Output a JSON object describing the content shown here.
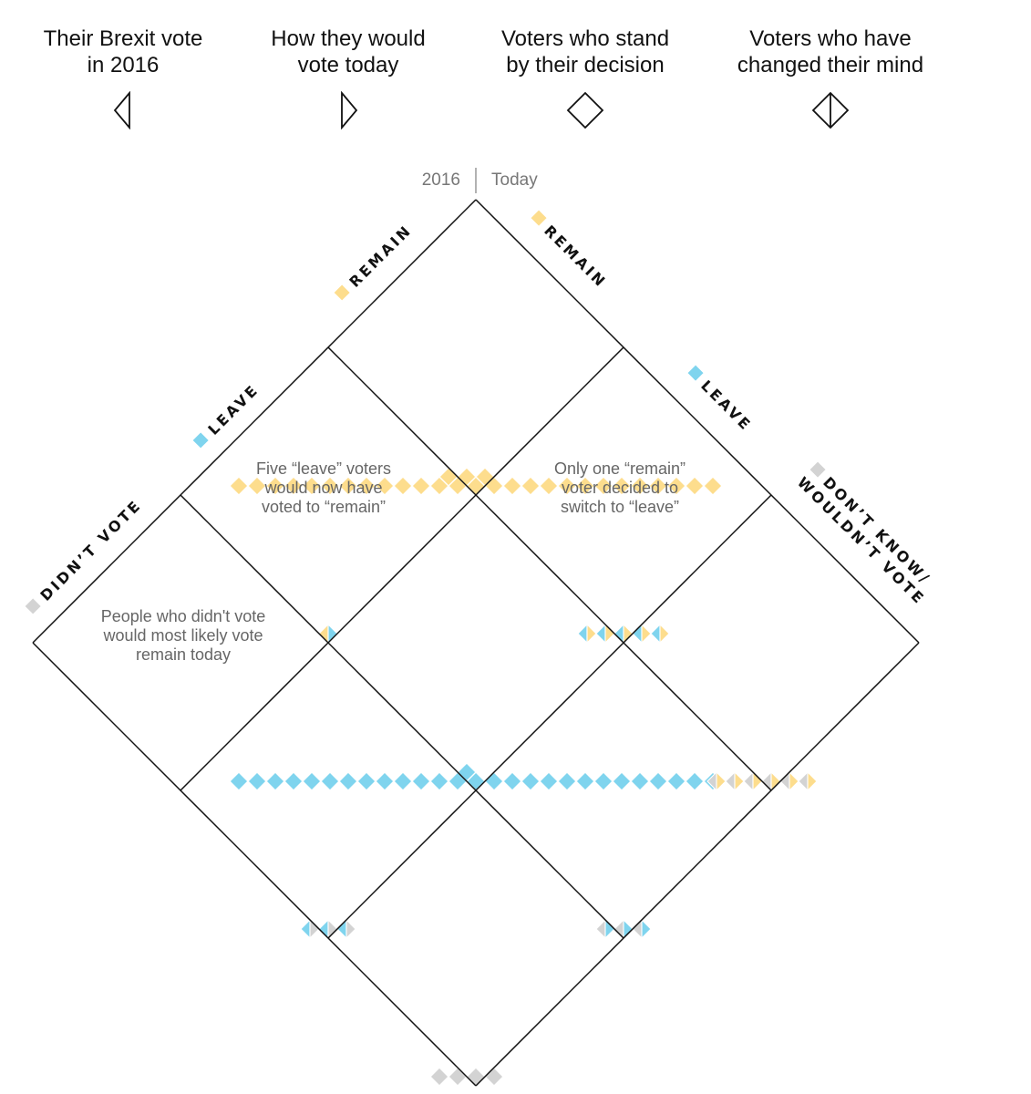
{
  "legend": [
    {
      "text": "Their Brexit vote\nin 2016",
      "icon": "left-triangle-icon"
    },
    {
      "text": "How they would\nvote today",
      "icon": "right-triangle-icon"
    },
    {
      "text": "Voters who stand\nby their decision",
      "icon": "diamond-icon"
    },
    {
      "text": "Voters who have\nchanged their mind",
      "icon": "split-diamond-icon"
    }
  ],
  "axis": {
    "left_label": "2016",
    "right_label": "Today"
  },
  "categories_2016": [
    "REMAIN",
    "LEAVE",
    "DIDN’T VOTE"
  ],
  "categories_today": [
    "REMAIN",
    "LEAVE",
    "DON’T KNOW/\nWOULDN’T VOTE"
  ],
  "annotations": [
    {
      "text": "Five “leave” voters\nwould now have\nvoted to “remain”"
    },
    {
      "text": "Only one “remain”\nvoter decided to\nswitch to “leave”"
    },
    {
      "text": "People who didn't vote\nwould most likely vote\nremain today"
    }
  ],
  "colors": {
    "remain": "#fddd8d",
    "leave": "#7fd4ee",
    "didnt_vote": "#d3d3d3",
    "line": "#111111",
    "cell_line": "#ffffff"
  },
  "chart_data": {
    "type": "heatmap",
    "title": "",
    "x_axis": "Today",
    "y_axis": "2016",
    "rows_2016": [
      "Remain",
      "Leave",
      "Didn't vote"
    ],
    "cols_today": [
      "Remain",
      "Leave",
      "Don't know/Wouldn't vote"
    ],
    "unit_counts": [
      [
        30,
        1,
        0
      ],
      [
        5,
        28,
        3
      ],
      [
        6,
        3,
        4
      ]
    ]
  }
}
